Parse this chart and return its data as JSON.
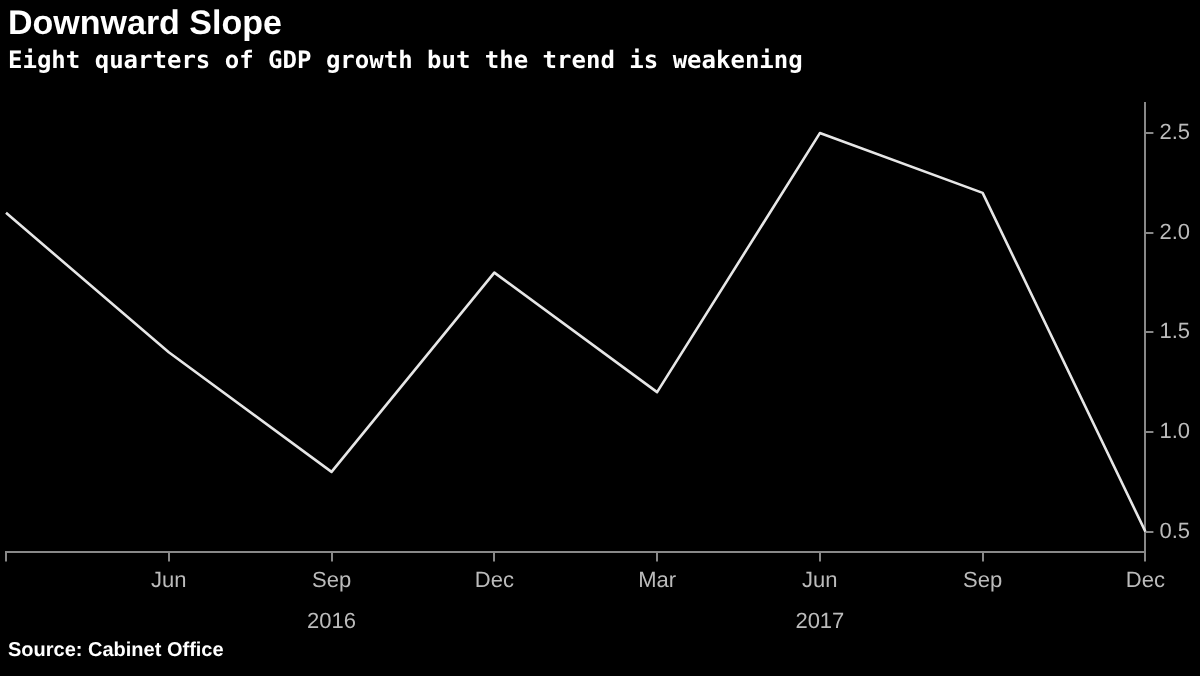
{
  "chart_data": {
    "type": "line",
    "title": "Downward Slope",
    "subtitle": "Eight quarters of GDP growth but the trend is weakening",
    "categories": [
      null,
      "Jun",
      "Sep",
      "Dec",
      "Mar",
      "Jun",
      "Sep",
      "Dec"
    ],
    "series": [
      {
        "color": "#e6e6e6",
        "values": [
          2.1,
          1.4,
          0.8,
          1.8,
          1.2,
          2.5,
          2.2,
          0.5
        ]
      }
    ],
    "ylim": [
      0.4,
      2.65
    ],
    "yticks": [
      0.5,
      {
        "value": 1,
        "label": "1.0"
      },
      1.5,
      {
        "value": 2,
        "label": "2.0"
      },
      2.5
    ],
    "grid": false,
    "legend": false,
    "marker": "none",
    "line_style": "solid",
    "annotations": [
      "2016",
      "2017",
      "Source: Cabinet Office"
    ]
  }
}
